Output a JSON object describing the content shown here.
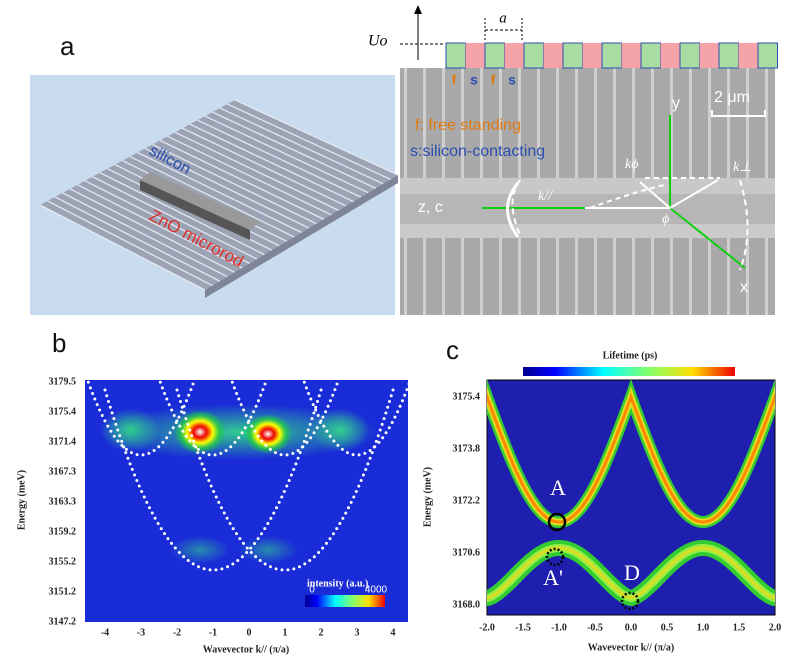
{
  "panel_a": {
    "label": "a",
    "schematic": {
      "substrate": "silicon",
      "rod": "ZnO microrod"
    },
    "sem": {
      "potential": "Uo",
      "period": "a",
      "strip_labels": [
        "f",
        "s",
        "f",
        "s"
      ],
      "scale_bar": "2 μm",
      "legend": [
        "f: free standing",
        "s:silicon-contacting"
      ],
      "axes": [
        "y",
        "z, c",
        "x"
      ],
      "vectors": [
        "kϕ",
        "k⊥",
        "k//",
        "ϕ"
      ]
    }
  },
  "panel_b": {
    "label": "b",
    "y_title": "Energy (meV)",
    "x_title": "Wavevector k// (π/a)",
    "yticks": [
      "3179.5",
      "3175.4",
      "3171.4",
      "3167.3",
      "3163.3",
      "3159.2",
      "3155.2",
      "3151.2",
      "3147.2"
    ],
    "xticks": [
      "-4",
      "-3",
      "-2",
      "-1",
      "0",
      "1",
      "2",
      "3",
      "4"
    ],
    "colorbar_title": "intensity (a.u.)",
    "colorbar_ticks": [
      "0",
      "4000"
    ]
  },
  "panel_c": {
    "label": "c",
    "colorbar_title": "Lifetime (ps)",
    "colorbar_ticks": [
      "0",
      "2",
      "4"
    ],
    "yticks": [
      "3175.4",
      "3173.8",
      "3172.2",
      "3170.6",
      "3168.0"
    ],
    "xticks": [
      "-2.0",
      "-1.5",
      "-1.0",
      "-0.5",
      "0.0",
      "0.5",
      "1.0",
      "1.5",
      "2.0"
    ],
    "y_title": "Energy (meV)",
    "x_title": "Wavevector k// (π/a)",
    "points": [
      "A",
      "A'",
      "D"
    ]
  }
}
